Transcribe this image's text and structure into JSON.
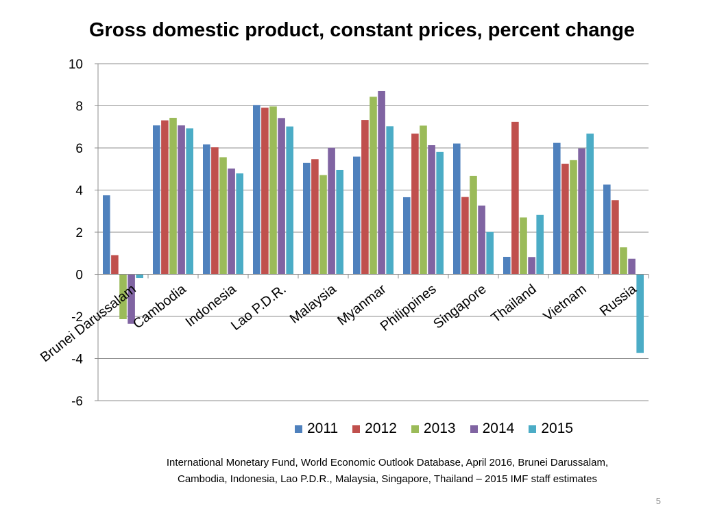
{
  "slide": {
    "source_line1": "International Monetary Fund, World Economic Outlook Database, April 2016, Brunei Darussalam,",
    "source_line2": "Cambodia, Indonesia, Lao P.D.R., Malaysia, Singapore, Thailand – 2015 IMF staff estimates",
    "page_number": "5"
  },
  "chart_data": {
    "type": "bar",
    "title": "Gross domestic product, constant prices, percent change",
    "xlabel": "",
    "ylabel": "",
    "ylim": [
      -6,
      10
    ],
    "yticks": [
      -6,
      -4,
      -2,
      0,
      2,
      4,
      6,
      8,
      10
    ],
    "ytick_labels": [
      "-6",
      "-4",
      "-2",
      "0",
      "2",
      "4",
      "6",
      "8",
      "10"
    ],
    "grid": true,
    "legend_position": "bottom-right",
    "categories": [
      "Brunei Darussalam",
      "Cambodia",
      "Indonesia",
      "Lao P.D.R.",
      "Malaysia",
      "Myanmar",
      "Philippines",
      "Singapore",
      "Thailand",
      "Vietnam",
      "Russia"
    ],
    "series": [
      {
        "name": "2011",
        "color": "#4f81bd",
        "values": [
          3.75,
          7.07,
          6.17,
          8.04,
          5.29,
          5.59,
          3.66,
          6.21,
          0.83,
          6.24,
          4.26
        ]
      },
      {
        "name": "2012",
        "color": "#c0504d",
        "values": [
          0.91,
          7.31,
          6.03,
          7.91,
          5.47,
          7.33,
          6.68,
          3.67,
          7.24,
          5.25,
          3.52
        ]
      },
      {
        "name": "2013",
        "color": "#9bbb59",
        "values": [
          -2.13,
          7.43,
          5.56,
          7.97,
          4.71,
          8.43,
          7.06,
          4.67,
          2.7,
          5.42,
          1.28
        ]
      },
      {
        "name": "2014",
        "color": "#8064a2",
        "values": [
          -2.35,
          7.07,
          5.02,
          7.42,
          6.01,
          8.7,
          6.13,
          3.26,
          0.82,
          5.98,
          0.74
        ]
      },
      {
        "name": "2015",
        "color": "#4bacc6",
        "values": [
          -0.18,
          6.93,
          4.79,
          7.02,
          4.96,
          7.03,
          5.81,
          2.01,
          2.82,
          6.68,
          -3.73
        ]
      }
    ]
  }
}
